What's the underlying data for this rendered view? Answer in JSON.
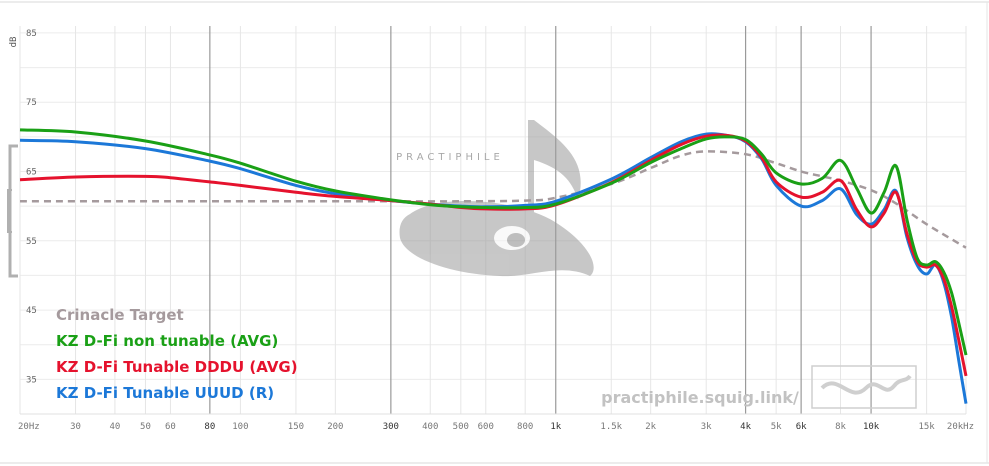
{
  "chart_data": {
    "type": "line",
    "xscale": "log",
    "xlim": [
      20,
      20000
    ],
    "ylim": [
      30,
      86
    ],
    "ylabel": "dB",
    "grid": true,
    "legend_placement": "bottom-left",
    "y_ticks": [
      35,
      45,
      55,
      65,
      75,
      85
    ],
    "x_ticks": [
      {
        "v": 20,
        "label": "20Hz",
        "major": false
      },
      {
        "v": 30,
        "label": "30",
        "major": false
      },
      {
        "v": 40,
        "label": "40",
        "major": false
      },
      {
        "v": 50,
        "label": "50",
        "major": false
      },
      {
        "v": 60,
        "label": "60",
        "major": false
      },
      {
        "v": 80,
        "label": "80",
        "major": true
      },
      {
        "v": 100,
        "label": "100",
        "major": false
      },
      {
        "v": 150,
        "label": "150",
        "major": false
      },
      {
        "v": 200,
        "label": "200",
        "major": false
      },
      {
        "v": 300,
        "label": "300",
        "major": true
      },
      {
        "v": 400,
        "label": "400",
        "major": false
      },
      {
        "v": 500,
        "label": "500",
        "major": false
      },
      {
        "v": 600,
        "label": "600",
        "major": false
      },
      {
        "v": 800,
        "label": "800",
        "major": false
      },
      {
        "v": 1000,
        "label": "1k",
        "major": true
      },
      {
        "v": 1500,
        "label": "1.5k",
        "major": false
      },
      {
        "v": 2000,
        "label": "2k",
        "major": false
      },
      {
        "v": 3000,
        "label": "3k",
        "major": false
      },
      {
        "v": 4000,
        "label": "4k",
        "major": true
      },
      {
        "v": 5000,
        "label": "5k",
        "major": false
      },
      {
        "v": 6000,
        "label": "6k",
        "major": true
      },
      {
        "v": 8000,
        "label": "8k",
        "major": false
      },
      {
        "v": 10000,
        "label": "10k",
        "major": true
      },
      {
        "v": 15000,
        "label": "15k",
        "major": false
      },
      {
        "v": 20000,
        "label": "20kHz",
        "major": false
      }
    ],
    "series": [
      {
        "name": "Crinacle Target",
        "color": "#a59a9d",
        "dashed": true,
        "x": [
          20,
          50,
          100,
          200,
          300,
          500,
          800,
          1000,
          1500,
          2000,
          2500,
          3000,
          4000,
          5000,
          6000,
          7000,
          8000,
          10000,
          12000,
          15000,
          20000
        ],
        "y": [
          60.7,
          60.7,
          60.7,
          60.7,
          60.7,
          60.7,
          60.8,
          61.2,
          63.2,
          65.5,
          67.3,
          67.9,
          67.5,
          66.2,
          65.0,
          64.3,
          63.7,
          62.3,
          60.4,
          57.4,
          54.0
        ]
      },
      {
        "name": "KZ D-Fi non tunable (AVG)",
        "color": "#1aa016",
        "x": [
          20,
          30,
          50,
          80,
          100,
          150,
          200,
          300,
          400,
          500,
          600,
          800,
          1000,
          1500,
          2000,
          2500,
          3000,
          3500,
          4000,
          4500,
          5000,
          6000,
          7000,
          8000,
          9000,
          10000,
          11000,
          12000,
          13000,
          14000,
          15000,
          16000,
          17000,
          18000,
          19000,
          20000
        ],
        "y": [
          71.0,
          70.7,
          69.4,
          67.4,
          66.2,
          63.6,
          62.2,
          60.9,
          60.2,
          59.9,
          59.8,
          59.8,
          60.3,
          63.3,
          66.3,
          68.3,
          69.7,
          70.0,
          69.6,
          67.5,
          64.8,
          63.2,
          64.0,
          66.6,
          62.6,
          59.0,
          62.0,
          65.8,
          58.0,
          52.5,
          51.5,
          52.0,
          50.5,
          47.5,
          43.0,
          38.5
        ]
      },
      {
        "name": "KZ D-Fi Tunable DDDU (AVG)",
        "color": "#e5122d",
        "x": [
          20,
          30,
          50,
          60,
          80,
          100,
          150,
          200,
          300,
          400,
          500,
          600,
          800,
          1000,
          1500,
          2000,
          2500,
          3000,
          3500,
          4000,
          4500,
          5000,
          6000,
          7000,
          8000,
          9000,
          10000,
          11000,
          12000,
          13000,
          14000,
          15000,
          16000,
          17000,
          18000,
          19000,
          20000
        ],
        "y": [
          63.8,
          64.2,
          64.3,
          64.1,
          63.5,
          63.0,
          62.0,
          61.4,
          60.8,
          60.3,
          59.8,
          59.6,
          59.6,
          60.2,
          63.4,
          66.6,
          68.9,
          70.1,
          70.2,
          69.4,
          67.0,
          63.5,
          61.3,
          62.0,
          63.7,
          59.5,
          57.0,
          59.0,
          62.0,
          56.0,
          52.0,
          51.2,
          51.5,
          49.5,
          45.5,
          40.5,
          35.5
        ]
      },
      {
        "name": "KZ D-Fi Tunable UUUD (R)",
        "color": "#1c78d8",
        "x": [
          20,
          30,
          50,
          80,
          100,
          150,
          200,
          300,
          400,
          500,
          600,
          800,
          1000,
          1500,
          2000,
          2500,
          3000,
          3500,
          4000,
          4500,
          5000,
          6000,
          7000,
          8000,
          9000,
          10000,
          11000,
          12000,
          13000,
          14000,
          15000,
          16000,
          17000,
          18000,
          19000,
          20000
        ],
        "y": [
          69.5,
          69.3,
          68.3,
          66.5,
          65.4,
          63.0,
          61.8,
          60.8,
          60.3,
          60.0,
          59.9,
          60.1,
          60.7,
          63.9,
          67.0,
          69.3,
          70.4,
          70.2,
          69.3,
          66.8,
          63.0,
          60.0,
          60.8,
          62.5,
          58.8,
          57.4,
          59.5,
          62.2,
          55.5,
          51.5,
          50.2,
          51.5,
          49.0,
          44.0,
          37.5,
          31.5
        ]
      }
    ],
    "watermark": {
      "brand": "PRACTIPHILE",
      "url": "practiphile.squig.link/"
    }
  }
}
